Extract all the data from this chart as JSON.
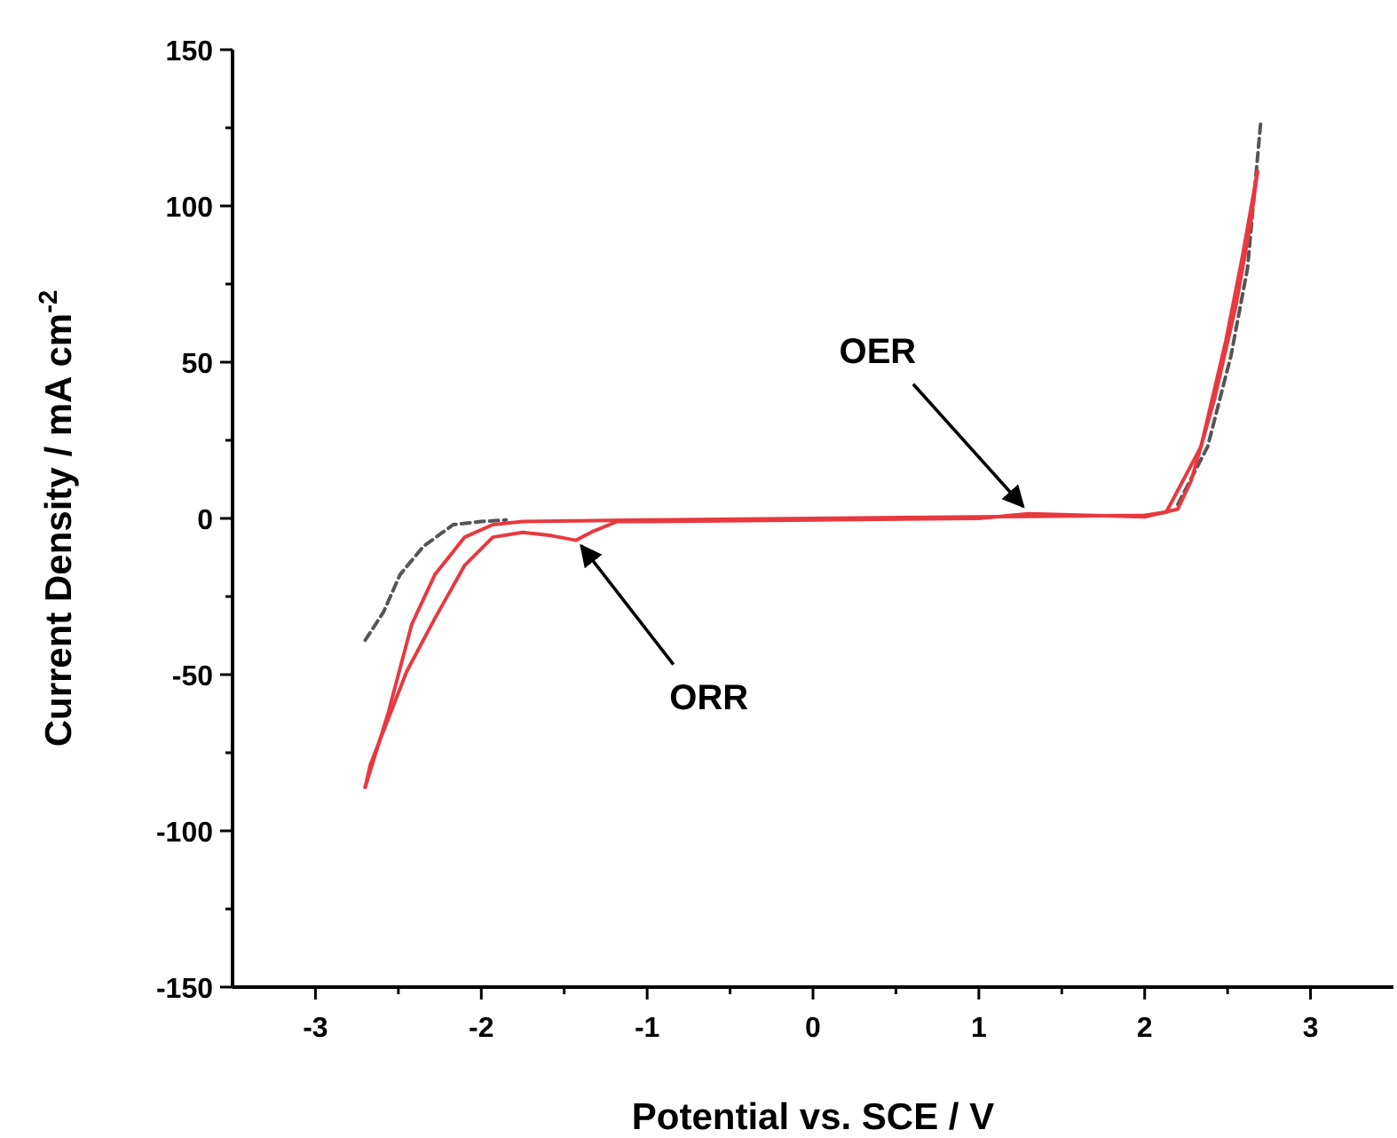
{
  "chart_data": {
    "type": "line",
    "xlabel": "Potential vs. SCE / V",
    "ylabel": "Current Density / mA cm$^{-2}$",
    "xlim": [
      -3.5,
      3.5
    ],
    "xticks": [
      -3,
      {
        "value": -2.5,
        "label": null
      },
      -2,
      {
        "value": -1.5,
        "label": null
      },
      -1,
      {
        "value": -0.5,
        "label": null
      },
      0,
      {
        "value": 0.5,
        "label": null
      },
      1,
      {
        "value": 1.5,
        "label": null
      },
      2,
      {
        "value": 2.5,
        "label": null
      },
      3
    ],
    "ylim": [
      -150,
      150
    ],
    "yticks": [
      -150,
      {
        "value": -125,
        "label": null
      },
      -100,
      {
        "value": -75,
        "label": null
      },
      -50,
      {
        "value": -25,
        "label": null
      },
      0,
      {
        "value": 25,
        "label": null
      },
      50,
      {
        "value": 75,
        "label": null
      },
      100,
      {
        "value": 125,
        "label": null
      },
      150
    ],
    "series": [
      {
        "color": "#555555",
        "line_style": "dashed",
        "x": [
          -2.7,
          -2.59,
          -2.49,
          -2.35,
          -2.17,
          -2.0,
          -1.85,
          0,
          2.2,
          2.38,
          2.52,
          2.62,
          2.7
        ],
        "values": [
          -39,
          -30,
          -18,
          -9,
          -2,
          -1,
          -0.5,
          null,
          4.5,
          23,
          52,
          80,
          127
        ]
      },
      {
        "color": "#e8393f",
        "line_style": "solid",
        "x": [
          -2.7,
          -2.56,
          -2.42,
          -2.28,
          -2.1,
          -1.93,
          -1.75,
          -1,
          0,
          1,
          2.0,
          2.13,
          2.34,
          2.49,
          2.59,
          2.68
        ],
        "values": [
          -86,
          -62,
          -34,
          -18,
          -6,
          -2,
          -1,
          -0.5,
          0,
          0.5,
          1,
          2,
          23,
          57,
          84,
          111
        ]
      },
      {
        "color": "#e8393f",
        "line_style": "solid",
        "x": [
          -2.7,
          -2.67,
          -2.45,
          -2.28,
          -2.1,
          -1.93,
          -1.75,
          -1.58,
          -1.43,
          -1.32,
          -1.18,
          -1,
          0,
          1,
          1.3,
          2.0,
          2.2,
          2.28,
          2.42,
          2.55,
          2.64,
          2.68
        ],
        "values": [
          -86,
          -79,
          -49,
          -32,
          -15,
          -6,
          -4.5,
          -5.5,
          -7,
          -4,
          -1,
          -1,
          -0.5,
          0,
          1.5,
          0.5,
          3,
          12,
          38,
          68,
          95,
          111
        ]
      }
    ],
    "annotations": [
      {
        "text": "OER",
        "x": 1.3,
        "y": 1.5
      },
      {
        "text": "ORR",
        "x": -1.43,
        "y": -7
      }
    ]
  }
}
